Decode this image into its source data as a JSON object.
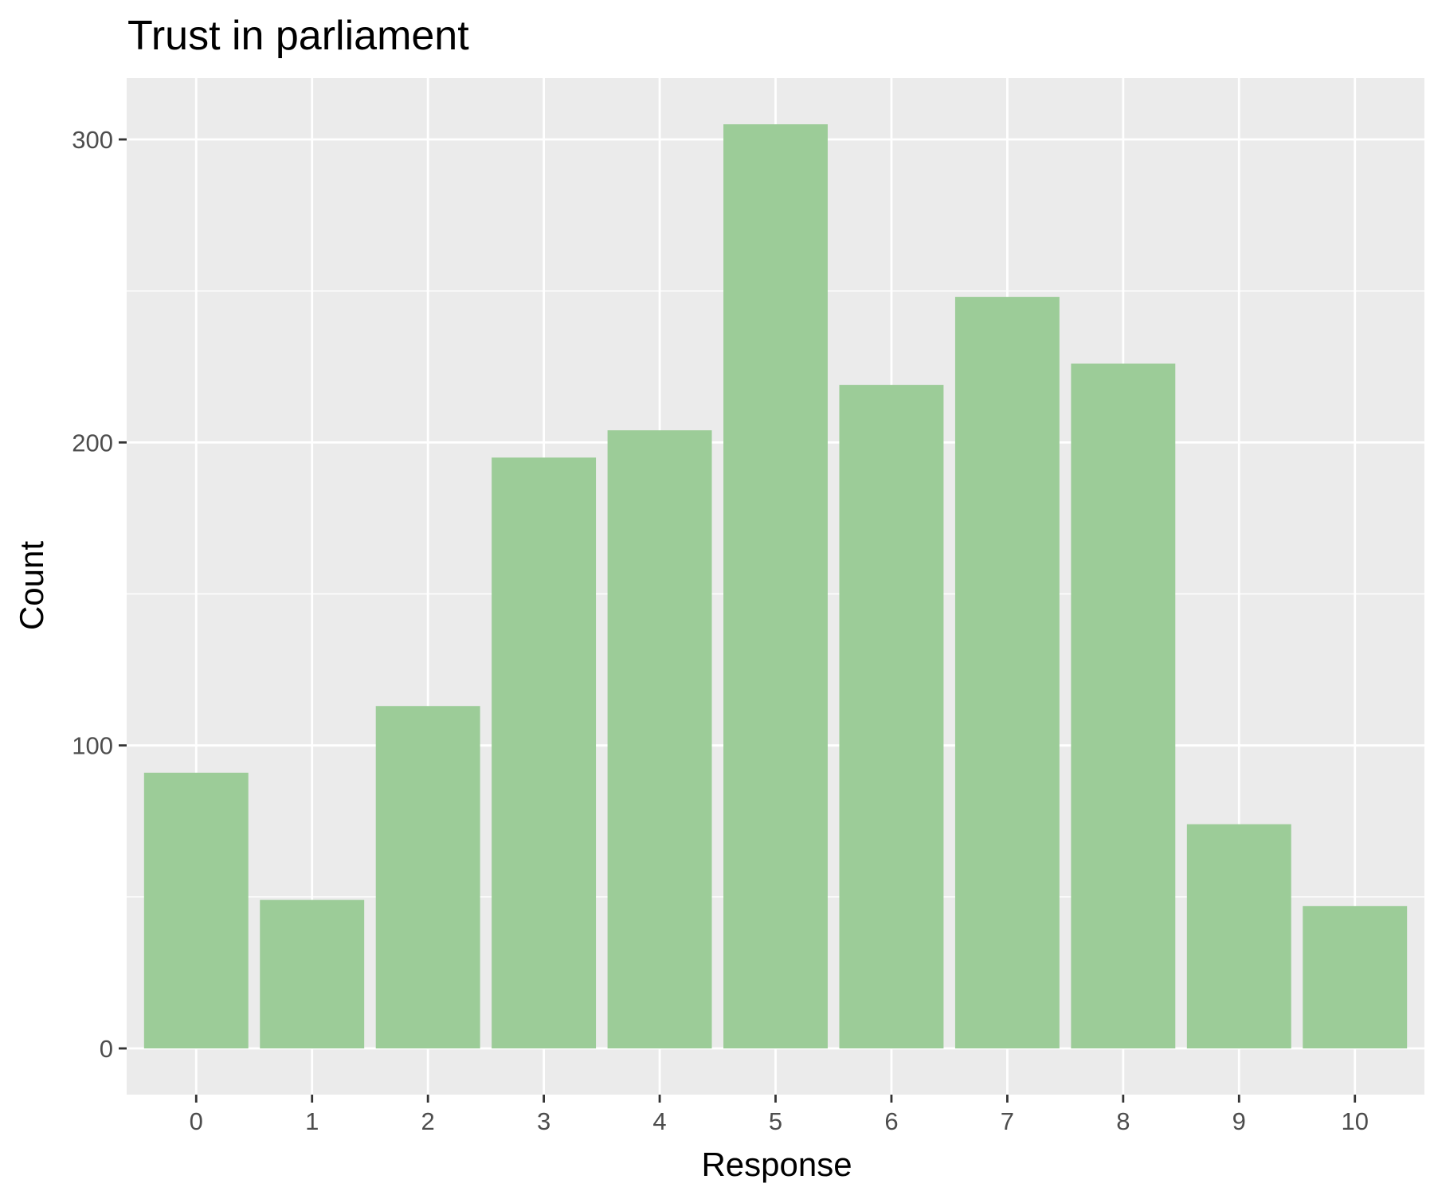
{
  "chart_data": {
    "type": "bar",
    "title": "Trust in parliament",
    "xlabel": "Response",
    "ylabel": "Count",
    "categories": [
      "0",
      "1",
      "2",
      "3",
      "4",
      "5",
      "6",
      "7",
      "8",
      "9",
      "10"
    ],
    "values": [
      91,
      49,
      113,
      195,
      204,
      305,
      219,
      248,
      226,
      74,
      47
    ],
    "ylim": [
      -15.25,
      320.25
    ],
    "yticks": [
      0,
      100,
      200,
      300
    ],
    "ytick_labels": [
      "0",
      "100",
      "200",
      "300"
    ],
    "grid": true,
    "legend": "none",
    "colors": {
      "bar": "#9ccc98",
      "panel": "#ebebeb",
      "grid": "#ffffff",
      "tick": "#333333"
    }
  }
}
